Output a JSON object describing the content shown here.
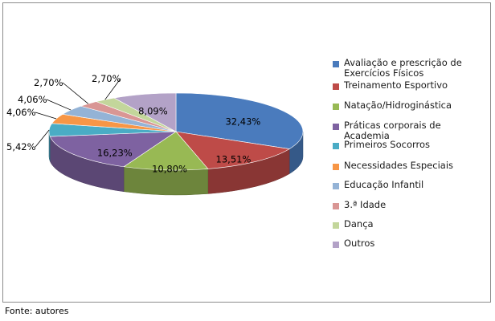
{
  "chart_data": {
    "type": "pie",
    "style": "3d-exploded-none",
    "categories": [
      "Avaliação e prescrição de Exercícios Físicos",
      "Treinamento Esportivo",
      "Natação/Hidroginástica",
      "Práticas corporais de Academia",
      "Primeiros Socorros",
      "Necessidades Especiais",
      "Educação Infantil",
      "3.ª Idade",
      "Dança",
      "Outros"
    ],
    "values": [
      32.43,
      13.51,
      10.8,
      16.23,
      5.42,
      4.06,
      4.06,
      2.7,
      2.7,
      8.09
    ],
    "data_labels": [
      "32,43%",
      "13,51%",
      "10,80%",
      "16,23%",
      "5,42%",
      "4,06%",
      "4,06%",
      "2,70%",
      "2,70%",
      "8,09%"
    ],
    "colors": [
      "#4a7bbd",
      "#be4b48",
      "#98b954",
      "#7e62a1",
      "#4aacc5",
      "#f79646",
      "#94b3d6",
      "#d99694",
      "#c3d69b",
      "#b3a2c7"
    ],
    "legend_position": "right",
    "title": ""
  },
  "source_note": "Fonte: autores"
}
